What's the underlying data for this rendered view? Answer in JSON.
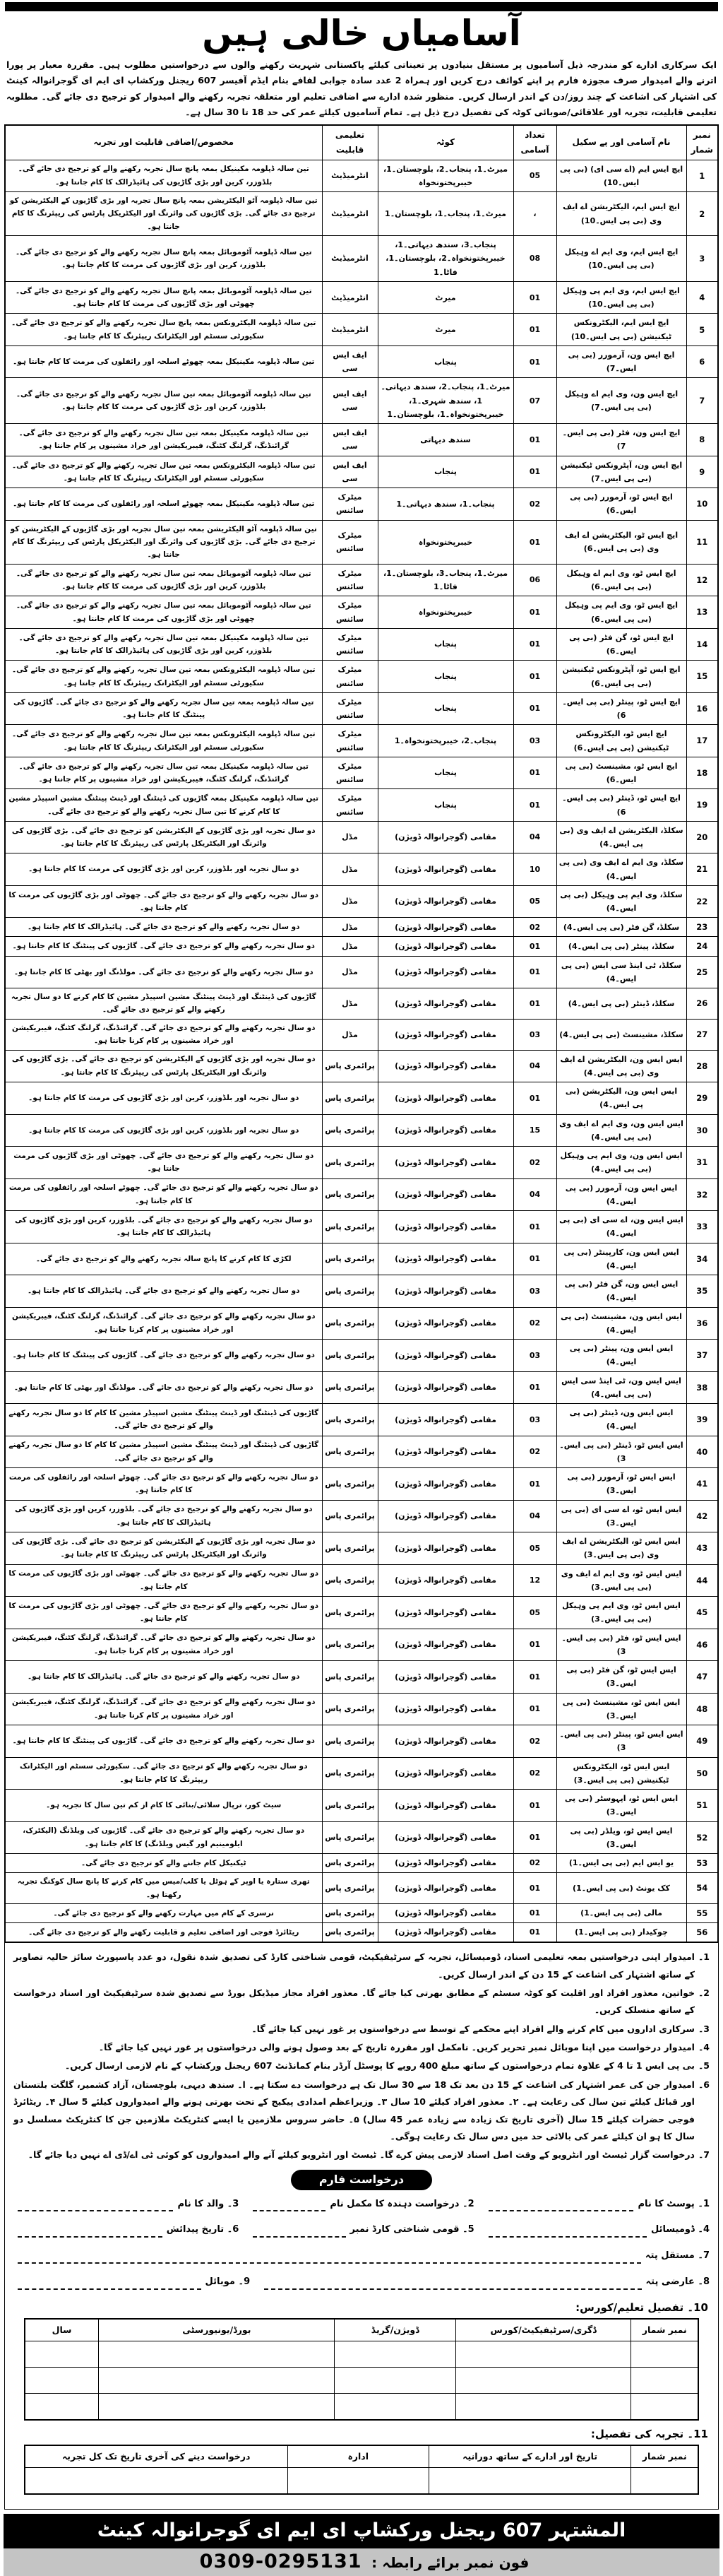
{
  "title": "آسامیاں خالی ہیں",
  "intro": "ایک سرکاری ادارے کو مندرجہ ذیل آسامیوں پر مستقل بنیادوں پر تعیناتی کیلئے پاکستانی شہریت رکھنے والوں سے درخواستیں مطلوب ہیں۔ مقررہ معیار پر پورا اترنے والے امیدوار صرف مجوزہ فارم پر اپنے کوائف درج کریں اور ہمراہ 2 عدد سادہ جوابی لفافے بنام ایڈم آفیسر 607 ریجنل ورکشاپ ای ایم ای گوجرانوالہ کینٹ کی اشتہار کی اشاعت کے چند روز/دن کے اندر ارسال کریں۔ منظور شدہ ادارے سے اضافی تعلیم اور متعلقہ تجربہ رکھنے والے امیدوار کو ترجیح دی جائے گی۔ مطلوبہ تعلیمی قابلیت، تجربہ اور علاقائی/صوبائی کوٹہ کی تفصیل درج ذیل ہے۔ تمام آسامیوں کیلئے عمر کی حد 18 تا 30 سال ہے۔",
  "table": {
    "headers": [
      "نمبر شمار",
      "نام آسامی اور پے سکیل",
      "تعداد آسامی",
      "کوٹہ",
      "تعلیمی قابلیت",
      "مخصوص/اضافی قابلیت اور تجربہ"
    ],
    "rows": [
      [
        "1",
        "ایچ ایس ایم (اے سی ای) (بی پی ایس۔10)",
        "05",
        "میرٹ۔1، پنجاب۔2، بلوچستان۔1، خیبرپختونخواہ",
        "انٹرمیڈیٹ",
        "تین سالہ ڈپلومہ مکینیکل بمعہ پانچ سال تجربہ رکھنے والے کو ترجیح دی جائے گی۔ بلڈوزر، کرین اور بڑی گاڑیوں کی ہائیڈرالک کا کام جانتا ہو۔"
      ],
      [
        "2",
        "ایچ ایس ایم، الیکٹریشن اے ایف وی (بی پی ایس۔10)",
        "،",
        "میرٹ۔1، پنجاب۔1، بلوچستان۔1",
        "انٹرمیڈیٹ",
        "تین سالہ ڈپلومہ آٹو الیکٹریشن بمعہ پانچ سال تجربہ اور بڑی گاڑیوں کے الیکٹریشن کو ترجیح دی جائے گی۔ بڑی گاڑیوں کی وائرنگ اور الیکٹریکل پارٹس کی ریپئرنگ کا کام جانتا ہو۔"
      ],
      [
        "3",
        "ایچ ایس ایم، وی ایم اے وہیکل (بی پی ایس۔10)",
        "08",
        "پنجاب۔3، سندھ دیہاتی۔1، خیبرپختونخواہ۔2، بلوچستان۔1، فاٹا۔1",
        "انٹرمیڈیٹ",
        "تین سالہ ڈپلومہ آٹوموبائل بمعہ پانچ سال تجربہ رکھنے والے کو ترجیح دی جائے گی۔ بلڈوزر، کرین اور بڑی گاڑیوں کی مرمت کا کام جانتا ہو۔"
      ],
      [
        "4",
        "ایچ ایس ایم، وی ایم پی وہیکل (بی پی ایس۔10)",
        "01",
        "میرٹ",
        "انٹرمیڈیٹ",
        "تین سالہ ڈپلومہ آٹوموبائل بمعہ پانچ سال تجربہ رکھنے والے کو ترجیح دی جائے گی۔ چھوٹی اور بڑی گاڑیوں کی مرمت کا کام جانتا ہو۔"
      ],
      [
        "5",
        "ایچ ایس ایم، الیکٹرونکس ٹیکنیشن (بی پی ایس۔10)",
        "01",
        "میرٹ",
        "انٹرمیڈیٹ",
        "تین سالہ ڈپلومہ الیکٹرونکس بمعہ پانچ سال تجربہ رکھنے والے کو ترجیح دی جائے گی۔ سکیورٹی سسٹم اور الیکٹرانک ریپئرنگ کا کام جانتا ہو۔"
      ],
      [
        "6",
        "ایچ ایس ون، آرمورر (بی پی ایس۔7)",
        "01",
        "پنجاب",
        "ایف ایس سی",
        "تین سالہ ڈپلومہ مکینیکل بمعہ چھوٹے اسلحہ اور رائفلوں کی مرمت کا کام جانتا ہو۔"
      ],
      [
        "7",
        "ایچ ایس ون، وی ایم اے وہیکل (بی پی ایس۔7)",
        "07",
        "میرٹ۔1، پنجاب۔2، سندھ دیہاتی۔1، سندھ شہری۔1، خیبرپختونخواہ۔1، بلوچستان۔1",
        "ایف ایس سی",
        "تین سالہ ڈپلومہ آٹوموبائل بمعہ تین سال تجربہ رکھنے والے کو ترجیح دی جائے گی۔ بلڈوزر، کرین اور بڑی گاڑیوں کی مرمت کا کام جانتا ہو۔"
      ],
      [
        "8",
        "ایچ ایس ون، فٹر (بی پی ایس۔7)",
        "01",
        "سندھ دیہاتی",
        "ایف ایس سی",
        "تین سالہ ڈپلومہ مکینیکل بمعہ تین سال تجربہ رکھنے والے کو ترجیح دی جائے گی۔ گرائنڈنگ، گرلنگ کٹنگ، فیبریکیشن اور خراد مشینوں پر کام جانتا ہو۔"
      ],
      [
        "9",
        "ایچ ایس ون، آپٹرونکس ٹیکنیشن (بی پی ایس۔7)",
        "01",
        "پنجاب",
        "ایف ایس سی",
        "تین سالہ ڈپلومہ الیکٹرونکس بمعہ تین سال تجربہ رکھنے والے کو ترجیح دی جائے گی۔ سکیورٹی سسٹم اور الیکٹرانک ریپئرنگ کا کام جانتا ہو۔"
      ],
      [
        "10",
        "ایچ ایس ٹو، آرمورر (بی پی ایس۔6)",
        "02",
        "پنجاب۔1، سندھ دیہاتی۔1",
        "میٹرک سائنس",
        "تین سالہ ڈپلومہ مکینیکل بمعہ چھوٹے اسلحہ اور رائفلوں کی مرمت کا کام جانتا ہو۔"
      ],
      [
        "11",
        "ایچ ایس ٹو، الیکٹریشن اے ایف وی (بی پی ایس۔6)",
        "01",
        "خیبرپختونخواہ",
        "میٹرک سائنس",
        "تین سالہ ڈپلومہ آٹو الیکٹریشن بمعہ تین سال تجربہ اور بڑی گاڑیوں کے الیکٹریشن کو ترجیح دی جائے گی۔ بڑی گاڑیوں کی وائرنگ اور الیکٹریکل پارٹس کی ریپئرنگ کا کام جانتا ہو۔"
      ],
      [
        "12",
        "ایچ ایس ٹو، وی ایم اے وہیکل (بی پی ایس۔6)",
        "06",
        "میرٹ۔1، پنجاب۔3، بلوچستان۔1، فاٹا۔1",
        "میٹرک سائنس",
        "تین سالہ ڈپلومہ آٹوموبائل بمعہ تین سال تجربہ رکھنے والے کو ترجیح دی جائے گی۔ بلڈوزر، کرین اور بڑی گاڑیوں کی مرمت کا کام جانتا ہو۔"
      ],
      [
        "13",
        "ایچ ایس ٹو، وی ایم پی وہیکل (بی پی ایس۔6)",
        "01",
        "خیبرپختونخواہ",
        "میٹرک سائنس",
        "تین سالہ ڈپلومہ آٹوموبائل بمعہ تین سال تجربہ رکھنے والے کو ترجیح دی جائے گی۔ چھوٹی اور بڑی گاڑیوں کی مرمت کا کام جانتا ہو۔"
      ],
      [
        "14",
        "ایچ ایس ٹو، گن فٹر (بی پی ایس۔6)",
        "01",
        "پنجاب",
        "میٹرک سائنس",
        "تین سالہ ڈپلومہ مکینیکل بمعہ تین سال تجربہ رکھنے والے کو ترجیح دی جائے گی۔ بلڈوزر، کرین اور بڑی گاڑیوں کی ہائیڈرالک کا کام جانتا ہو۔"
      ],
      [
        "15",
        "ایچ ایس ٹو، آپٹرونکس ٹیکنیشن (بی پی ایس۔6)",
        "01",
        "پنجاب",
        "میٹرک سائنس",
        "تین سالہ ڈپلومہ الیکٹرونکس بمعہ تین سال تجربہ رکھنے والے کو ترجیح دی جائے گی۔ سکیورٹی سسٹم اور الیکٹرانک ریپئرنگ کا کام جانتا ہو۔"
      ],
      [
        "16",
        "ایچ ایس ٹو، پینٹر (بی پی ایس۔6)",
        "01",
        "پنجاب",
        "میٹرک سائنس",
        "تین سالہ ڈپلومہ بمعہ تین سال تجربہ رکھنے والے کو ترجیح دی جائے گی۔ گاڑیوں کی پینٹنگ کا کام جانتا ہو۔"
      ],
      [
        "17",
        "ایچ ایس ٹو، الیکٹرونکس ٹیکنیشن (بی پی ایس۔6)",
        "03",
        "پنجاب۔2، خیبرپختونخواہ۔1",
        "میٹرک سائنس",
        "تین سالہ ڈپلومہ الیکٹرونکس بمعہ تین سال تجربہ رکھنے والے کو ترجیح دی جائے گی۔ سکیورٹی سسٹم اور الیکٹرانک ریپئرنگ کا کام جانتا ہو۔"
      ],
      [
        "18",
        "ایچ ایس ٹو، مشینسٹ (بی پی ایس۔6)",
        "01",
        "پنجاب",
        "میٹرک سائنس",
        "تین سالہ ڈپلومہ مکینیکل بمعہ تین سال تجربہ رکھنے والے کو ترجیح دی جائے گی۔ گرائنڈنگ، گرلنگ کٹنگ، فیبریکیشن اور خراد مشینوں پر کام جانتا ہو۔"
      ],
      [
        "19",
        "ایچ ایس ٹو، ڈینٹر (بی پی ایس۔6)",
        "01",
        "پنجاب",
        "میٹرک سائنس",
        "تین سالہ ڈپلومہ مکینیکل بمعہ گاڑیوں کی ڈینٹنگ اور ڈینٹ پینٹنگ مشین اسپیڈر مشین کا کام کرنے کا تین سال تجربہ رکھنے والے کو ترجیح دی جائے گی۔"
      ],
      [
        "20",
        "سکلڈ، الیکٹریشن اے ایف وی (بی پی ایس۔4)",
        "04",
        "مقامی (گوجرانوالہ ڈویژن)",
        "مڈل",
        "دو سال تجربہ اور بڑی گاڑیوں کے الیکٹریشن کو ترجیح دی جائے گی۔ بڑی گاڑیوں کی وائرنگ اور الیکٹریکل پارٹس کی ریپئرنگ کا کام جانتا ہو۔"
      ],
      [
        "21",
        "سکلڈ، وی ایم اے ایف وی (بی پی ایس۔4)",
        "10",
        "مقامی (گوجرانوالہ ڈویژن)",
        "مڈل",
        "دو سال تجربہ اور بلڈوزر، کرین اور بڑی گاڑیوں کی مرمت کا کام جانتا ہو۔"
      ],
      [
        "22",
        "سکلڈ، وی ایم پی وہیکل (بی پی ایس۔4)",
        "05",
        "مقامی (گوجرانوالہ ڈویژن)",
        "مڈل",
        "دو سال تجربہ رکھنے والے کو ترجیح دی جائے گی۔ چھوٹی اور بڑی گاڑیوں کی مرمت کا کام جانتا ہو۔"
      ],
      [
        "23",
        "سکلڈ، گن فٹر (بی پی ایس۔4)",
        "02",
        "مقامی (گوجرانوالہ ڈویژن)",
        "مڈل",
        "دو سال تجربہ رکھنے والے کو ترجیح دی جائے گی۔ ہائیڈرالک کا کام جانتا ہو۔"
      ],
      [
        "24",
        "سکلڈ، پینٹر (بی پی ایس۔4)",
        "01",
        "مقامی (گوجرانوالہ ڈویژن)",
        "مڈل",
        "دو سال تجربہ رکھنے والے کو ترجیح دی جائے گی۔ گاڑیوں کی پینٹنگ کا کام جانتا ہو۔"
      ],
      [
        "25",
        "سکلڈ، ٹی اینڈ سی ایس (بی پی ایس۔4)",
        "01",
        "مقامی (گوجرانوالہ ڈویژن)",
        "مڈل",
        "دو سال تجربہ رکھنے والے کو ترجیح دی جائے گی۔ مولڈنگ اور بھٹی کا کام جانتا ہو۔"
      ],
      [
        "26",
        "سکلڈ، ڈینٹر (بی پی ایس۔4)",
        "01",
        "مقامی (گوجرانوالہ ڈویژن)",
        "مڈل",
        "گاڑیوں کی ڈینٹنگ اور ڈینٹ پینٹنگ مشین اسپیڈر مشین کا کام کرنے کا دو سال تجربہ رکھنے والے کو ترجیح دی جائے گی۔"
      ],
      [
        "27",
        "سکلڈ، مشینسٹ (بی پی ایس۔4)",
        "03",
        "مقامی (گوجرانوالہ ڈویژن)",
        "مڈل",
        "دو سال تجربہ رکھنے والے کو ترجیح دی جائے گی۔ گرائنڈنگ، گرلنگ کٹنگ، فیبریکیشن اور خراد مشینوں پر کام کرنا جانتا ہو۔"
      ],
      [
        "28",
        "ایس ایس ون، الیکٹریشن اے ایف وی (بی پی ایس۔4)",
        "04",
        "مقامی (گوجرانوالہ ڈویژن)",
        "پرائمری پاس",
        "دو سال تجربہ اور بڑی گاڑیوں کے الیکٹریشن کو ترجیح دی جائے گی۔ بڑی گاڑیوں کی وائرنگ اور الیکٹریکل پارٹس کی ریپئرنگ کا کام جانتا ہو۔"
      ],
      [
        "29",
        "ایس ایس ون، الیکٹریشن (بی پی ایس۔4)",
        "01",
        "مقامی (گوجرانوالہ ڈویژن)",
        "پرائمری پاس",
        "دو سال تجربہ اور بلڈوزر، کرین اور بڑی گاڑیوں کی مرمت کا کام جانتا ہو۔"
      ],
      [
        "30",
        "ایس ایس ون، وی ایم اے ایف وی (بی پی ایس۔4)",
        "15",
        "مقامی (گوجرانوالہ ڈویژن)",
        "پرائمری پاس",
        "دو سال تجربہ اور بلڈوزر، کرین اور بڑی گاڑیوں کی مرمت کا کام جانتا ہو۔"
      ],
      [
        "31",
        "ایس ایس ون، وی ایم پی وہیکل (بی پی ایس۔4)",
        "02",
        "مقامی (گوجرانوالہ ڈویژن)",
        "پرائمری پاس",
        "دو سال تجربہ رکھنے والے کو ترجیح دی جائے گی۔ چھوٹی اور بڑی گاڑیوں کی مرمت جانتا ہو۔"
      ],
      [
        "32",
        "ایس ایس ون، آرمورر (بی پی ایس۔4)",
        "04",
        "مقامی (گوجرانوالہ ڈویژن)",
        "پرائمری پاس",
        "دو سال تجربہ رکھنے والے کو ترجیح دی جائے گی۔ چھوٹے اسلحہ اور رائفلوں کی مرمت کا کام جانتا ہو۔"
      ],
      [
        "33",
        "ایس ایس ون، اے سی ای (بی پی ایس۔4)",
        "01",
        "مقامی (گوجرانوالہ ڈویژن)",
        "پرائمری پاس",
        "دو سال تجربہ رکھنے والے کو ترجیح دی جائے گی۔ بلڈوزر، کرین اور بڑی گاڑیوں کی ہائیڈرالک کا کام جانتا ہو۔"
      ],
      [
        "34",
        "ایس ایس ون، کارپینٹر (بی پی ایس۔4)",
        "01",
        "مقامی (گوجرانوالہ ڈویژن)",
        "پرائمری پاس",
        "لکڑی کا کام کرنے کا پانچ سالہ تجربہ رکھنے والے کو ترجیح دی جائے گی۔"
      ],
      [
        "35",
        "ایس ایس ون، گن فٹر (بی پی ایس۔4)",
        "03",
        "مقامی (گوجرانوالہ ڈویژن)",
        "پرائمری پاس",
        "دو سال تجربہ رکھنے والے کو ترجیح دی جائے گی۔ ہائیڈرالک کا کام جانتا ہو۔"
      ],
      [
        "36",
        "ایس ایس ون، مشینسٹ (بی پی ایس۔4)",
        "02",
        "مقامی (گوجرانوالہ ڈویژن)",
        "پرائمری پاس",
        "دو سال تجربہ رکھنے والے کو ترجیح دی جائے گی۔ گرائنڈنگ، گرلنگ کٹنگ، فیبریکیشن اور خراد مشینوں پر کام کرنا جانتا ہو۔"
      ],
      [
        "37",
        "ایس ایس ون، پینٹر (بی پی ایس۔4)",
        "03",
        "مقامی (گوجرانوالہ ڈویژن)",
        "پرائمری پاس",
        "دو سال تجربہ رکھنے والے کو ترجیح دی جائے گی۔ گاڑیوں کی پینٹنگ کا کام جانتا ہو۔"
      ],
      [
        "38",
        "ایس ایس ون، ٹی اینڈ سی ایس (بی پی ایس۔4)",
        "01",
        "مقامی (گوجرانوالہ ڈویژن)",
        "پرائمری پاس",
        "دو سال تجربہ رکھنے والے کو ترجیح دی جائے گی۔ مولڈنگ اور بھٹی کا کام جانتا ہو۔"
      ],
      [
        "39",
        "ایس ایس ون، ڈینٹر (بی پی ایس۔4)",
        "03",
        "مقامی (گوجرانوالہ ڈویژن)",
        "پرائمری پاس",
        "گاڑیوں کی ڈینٹنگ اور ڈینٹ پینٹنگ مشین اسپیڈر مشین کا کام کا دو سال تجربہ رکھنے والے کو ترجیح دی جائے گی۔"
      ],
      [
        "40",
        "ایس ایس ٹو، ڈینٹر (بی پی ایس۔3)",
        "02",
        "مقامی (گوجرانوالہ ڈویژن)",
        "پرائمری پاس",
        "گاڑیوں کی ڈینٹنگ اور ڈینٹ پینٹنگ مشین اسپیڈر مشین کا کام کا دو سال تجربہ رکھنے والے کو ترجیح دی جائے گی۔"
      ],
      [
        "41",
        "ایس ایس ٹو، آرمورر (بی پی ایس۔3)",
        "01",
        "مقامی (گوجرانوالہ ڈویژن)",
        "پرائمری پاس",
        "دو سال تجربہ رکھنے والے کو ترجیح دی جائے گی۔ چھوٹے اسلحہ اور رائفلوں کی مرمت کا کام جانتا ہو۔"
      ],
      [
        "42",
        "ایس ایس ٹو، اے سی ای (بی پی ایس۔3)",
        "04",
        "مقامی (گوجرانوالہ ڈویژن)",
        "پرائمری پاس",
        "دو سال تجربہ رکھنے والے کو ترجیح دی جائے گی۔ بلڈوزر، کرین اور بڑی گاڑیوں کی ہائیڈرالک کا کام جانتا ہو۔"
      ],
      [
        "43",
        "ایس ایس ٹو، الیکٹریشن اے ایف وی (بی پی ایس۔3)",
        "05",
        "مقامی (گوجرانوالہ ڈویژن)",
        "پرائمری پاس",
        "دو سال تجربہ اور بڑی گاڑیوں کے الیکٹریشن کو ترجیح دی جائے گی۔ بڑی گاڑیوں کی وائرنگ اور الیکٹریکل پارٹس کی ریپئرنگ کا کام جانتا ہو۔"
      ],
      [
        "44",
        "ایس ایس ٹو، وی ایم اے ایف وی (بی پی ایس۔3)",
        "12",
        "مقامی (گوجرانوالہ ڈویژن)",
        "پرائمری پاس",
        "دو سال تجربہ رکھنے والے کو ترجیح دی جائے گی۔ چھوٹی اور بڑی گاڑیوں کی مرمت کا کام جانتا ہو۔"
      ],
      [
        "45",
        "ایس ایس ٹو، وی ایم پی وہیکل (بی پی ایس۔3)",
        "05",
        "مقامی (گوجرانوالہ ڈویژن)",
        "پرائمری پاس",
        "دو سال تجربہ رکھنے والے کو ترجیح دی جائے گی۔ چھوٹی اور بڑی گاڑیوں کی مرمت کا کام جانتا ہو۔"
      ],
      [
        "46",
        "ایس ایس ٹو، فٹر (بی پی ایس۔3)",
        "01",
        "مقامی (گوجرانوالہ ڈویژن)",
        "پرائمری پاس",
        "دو سال تجربہ رکھنے والے کو ترجیح دی جائے گی۔ گرائنڈنگ، گرلنگ کٹنگ، فیبریکیشن اور خراد مشینوں پر کام کرنا جانتا ہو۔"
      ],
      [
        "47",
        "ایس ایس ٹو، گن فٹر (بی پی ایس۔3)",
        "01",
        "مقامی (گوجرانوالہ ڈویژن)",
        "پرائمری پاس",
        "دو سال تجربہ رکھنے والے کو ترجیح دی جائے گی۔ ہائیڈرالک کا کام جانتا ہو۔"
      ],
      [
        "48",
        "ایس ایس ٹو، مشینسٹ (بی پی ایس۔3)",
        "01",
        "مقامی (گوجرانوالہ ڈویژن)",
        "پرائمری پاس",
        "دو سال تجربہ رکھنے والے کو ترجیح دی جائے گی۔ گرائنڈنگ، گرلنگ کٹنگ، فیبریکیشن اور خراد مشینوں پر کام کرنا جانتا ہو۔"
      ],
      [
        "49",
        "ایس ایس ٹو، پینٹر (بی پی ایس۔3)",
        "02",
        "مقامی (گوجرانوالہ ڈویژن)",
        "پرائمری پاس",
        "دو سال تجربہ رکھنے والے کو ترجیح دی جائے گی۔ گاڑیوں کی پینٹنگ کا کام جانتا ہو۔"
      ],
      [
        "50",
        "ایس ایس ٹو، الیکٹرونکس ٹیکنیشن (بی پی ایس۔3)",
        "02",
        "مقامی (گوجرانوالہ ڈویژن)",
        "پرائمری پاس",
        "دو سال تجربہ رکھنے والے کو ترجیح دی جائے گی۔ سکیورٹی سسٹم اور الیکٹرانک ریپئرنگ کا کام جانتا ہو۔"
      ],
      [
        "51",
        "ایس ایس ٹو، اپہوسٹر (بی پی ایس۔3)",
        "01",
        "مقامی (گوجرانوالہ ڈویژن)",
        "پرائمری پاس",
        "سیٹ کور، ترپال سلائی/بنائی کا کام از کم تین سال کا تجربہ ہو۔"
      ],
      [
        "52",
        "ایس ایس ٹو، ویلڈر (بی پی ایس۔3)",
        "01",
        "مقامی (گوجرانوالہ ڈویژن)",
        "پرائمری پاس",
        "دو سال تجربہ رکھنے والے کو ترجیح دی جائے گی۔ گاڑیوں کی ویلڈنگ (الیکٹرک، ایلومینیم اور گیس ویلڈنگ) کا کام جانتا ہو۔"
      ],
      [
        "53",
        "یو ایس ایم (بی پی ایس۔1)",
        "02",
        "مقامی (گوجرانوالہ ڈویژن)",
        "پرائمری پاس",
        "ٹیکنیکل کام جاننے والے کو ترجیح دی جائے گی۔"
      ],
      [
        "54",
        "کک یونٹ (بی پی ایس۔1)",
        "01",
        "مقامی (گوجرانوالہ ڈویژن)",
        "پرائمری پاس",
        "تھری ستارہ یا اوپر کے ہوٹل یا کلب/میس میں کام کرنے کا پانچ سال کوکنگ تجربہ رکھتا ہو۔"
      ],
      [
        "55",
        "مالی (بی پی ایس۔1)",
        "01",
        "مقامی (گوجرانوالہ ڈویژن)",
        "پرائمری پاس",
        "نرسری کے کام میں مہارت رکھنے والے کو ترجیح دی جائے گی۔"
      ],
      [
        "56",
        "چوکیدار (بی پی ایس۔1)",
        "01",
        "مقامی (گوجرانوالہ ڈویژن)",
        "پرائمری پاس",
        "ریٹائرڈ فوجی اور اضافی تعلیم و قابلیت رکھنے والے کو ترجیح دی جائے گی۔"
      ]
    ]
  },
  "notes": [
    {
      "num": "1۔",
      "text": "امیدوار اپنی درخواستیں بمعہ تعلیمی اسناد، ڈومیسائل، تجربہ کے سرٹیفیکیٹ، قومی شناختی کارڈ کی تصدیق شدہ نقول، دو عدد پاسپورٹ سائز حالیہ تصاویر کے ساتھ اشتہار کی اشاعت کے 15 دن کے اندر ارسال کریں۔"
    },
    {
      "num": "2۔",
      "text": "خواتین، معذور افراد اور اقلیت کو کوٹہ سسٹم کے مطابق بھرتی کیا جائے گا۔ معذور افراد مجاز میڈیکل بورڈ سے تصدیق شدہ سرٹیفیکیٹ اور اسناد درخواست کے ساتھ منسلک کریں۔"
    },
    {
      "num": "3۔",
      "text": "سرکاری اداروں میں کام کرنے والے افراد اپنے محکمے کے توسط سے درخواستوں پر غور نہیں کیا جائے گا۔"
    },
    {
      "num": "4۔",
      "text": "امیدوار درخواست میں اپنا موبائل نمبر تحریر کریں۔ نامکمل اور مقررہ تاریخ کے بعد وصول ہونے والی درخواستوں پر غور نہیں کیا جائے گا۔"
    },
    {
      "num": "5۔",
      "text": "بی پی ایس 1 تا 4 کے علاوہ تمام درخواستوں کے ساتھ مبلغ 400 روپے کا پوسٹل آرڈر بنام کمانڈنٹ 607 ریجنل ورکشاپ کے نام لازمی ارسال کریں۔"
    },
    {
      "num": "6۔",
      "text": "امیدوار جن کی عمر اشتہار کی اشاعت کے 15 دن بعد تک 18 سے 30 سال تک ہے درخواست دے سکتا ہے۔    ا۔ سندھ دیہی، بلوچستان، آزاد کشمیر، گلگت بلتستان اور قبائل کیلئے تین سال کی رعایت ہے۔    ۲۔ معذور افراد کیلئے 10 سال    ۳۔ وزیراعظم امدادی پیکیج کے تحت بھرتی ہونے والے امیدواروں کیلئے 5 سال    ۴۔ ریٹائرڈ فوجی حضرات کیلئے 15 سال (آخری تاریخ تک زیادہ سے زیادہ عمر 45 سال)    ۵۔ حاضر سروس ملازمین یا ایسے کنٹریکٹ ملازمین جن کا کنٹریکٹ مسلسل دو سال کا ہو ان کیلئے عمر کی بالائی حد میں دس سال تک رعایت ہوگی۔"
    },
    {
      "num": "7۔",
      "text": "درخواست گزار ٹیسٹ اور انٹرویو کے وقت اصل اسناد لازمی پیش کرے گا۔ ٹیسٹ اور انٹرویو کیلئے آنے والے امیدواروں کو کوئی ٹی اے/ڈی اے نہیں دیا جائے گا۔"
    }
  ],
  "form": {
    "badge": "درخواست فارم",
    "fields": [
      "1۔ پوسٹ کا نام",
      "2۔ درخواست دہندہ کا مکمل نام",
      "3۔ والد کا نام",
      "4۔ ڈومیسائل",
      "5۔ قومی شناختی کارڈ نمبر",
      "6۔ تاریخ پیدائش",
      "7۔ مستقل پتہ",
      "8۔ عارضی پتہ",
      "9۔ موبائل"
    ]
  },
  "education": {
    "heading": "10۔  تفصیل تعلیم/کورس:",
    "headers": [
      "نمبر شمار",
      "ڈگری/سرٹیفیکیٹ/کورس",
      "ڈویژن/گریڈ",
      "بورڈ/یونیورسٹی",
      "سال"
    ],
    "empty_rows": 3
  },
  "experience": {
    "heading": "11۔  تجربہ کی تفصیل:",
    "headers": [
      "نمبر شمار",
      "تاریخ اور ادارے کے ساتھ دورانیہ",
      "ادارہ",
      "درخواست دینے کی آخری تاریخ تک کل تجربہ"
    ],
    "empty_rows": 1
  },
  "footer": {
    "publisher": "المشتہر 607 ریجنل ورکشاپ ای ایم ای گوجرانوالہ کینٹ",
    "contact_label": "فون نمبر برائے رابطہ :",
    "phone": "0309-0295131"
  },
  "colors": {
    "bar_black": "#000000",
    "footer_gray": "#c4c4c4",
    "text": "#000000",
    "background": "#ffffff"
  }
}
